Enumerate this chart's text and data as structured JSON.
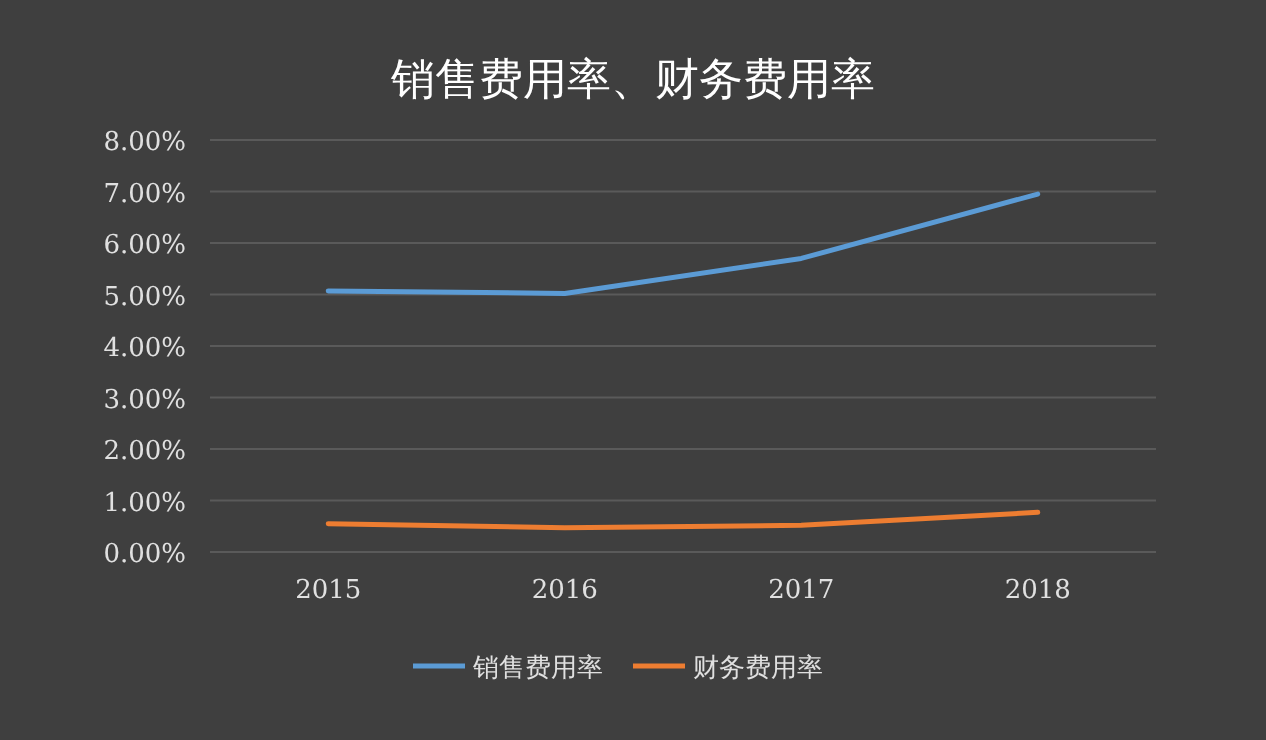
{
  "chart_data": {
    "type": "line",
    "title": "销售费用率、财务费用率",
    "categories": [
      "2015",
      "2016",
      "2017",
      "2018"
    ],
    "series": [
      {
        "name": "销售费用率",
        "color": "#5b9bd5",
        "values": [
          5.07,
          5.02,
          5.7,
          6.95
        ]
      },
      {
        "name": "财务费用率",
        "color": "#ed7d31",
        "values": [
          0.55,
          0.47,
          0.52,
          0.77
        ]
      }
    ],
    "ylim": [
      0,
      8
    ],
    "yticks": [
      {
        "value": 0,
        "label": "0.00%"
      },
      {
        "value": 1,
        "label": "1.00%"
      },
      {
        "value": 2,
        "label": "2.00%"
      },
      {
        "value": 3,
        "label": "3.00%"
      },
      {
        "value": 4,
        "label": "4.00%"
      },
      {
        "value": 5,
        "label": "5.00%"
      },
      {
        "value": 6,
        "label": "6.00%"
      },
      {
        "value": 7,
        "label": "7.00%"
      },
      {
        "value": 8,
        "label": "8.00%"
      }
    ],
    "grid": "y",
    "legend": "bottom",
    "marker": "none",
    "line_style": "solid"
  }
}
